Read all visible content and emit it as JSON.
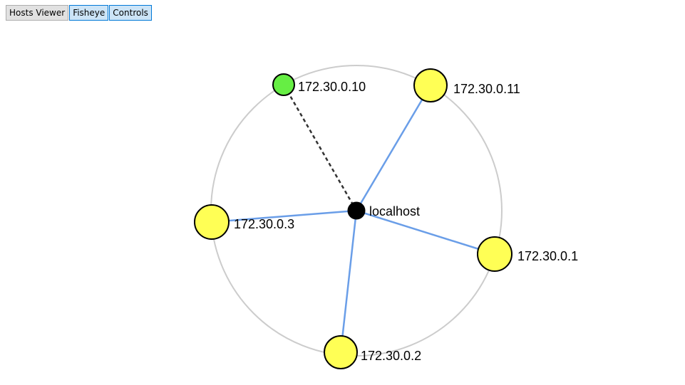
{
  "toolbar": {
    "buttons": [
      {
        "label": "Hosts Viewer",
        "active": false
      },
      {
        "label": "Fisheye",
        "active": true
      },
      {
        "label": "Controls",
        "active": true
      }
    ]
  },
  "graph": {
    "center": {
      "label": "localhost",
      "color": "#000000"
    },
    "orbit_color": "#cccccc",
    "link_color": "#6a9ee8",
    "dashed_link_color": "#333333",
    "nodes": [
      {
        "label": "172.30.0.10",
        "color": "#66ee44",
        "link": "dashed"
      },
      {
        "label": "172.30.0.11",
        "color": "#ffff55",
        "link": "solid"
      },
      {
        "label": "172.30.0.3",
        "color": "#ffff55",
        "link": "solid"
      },
      {
        "label": "172.30.0.1",
        "color": "#ffff55",
        "link": "solid"
      },
      {
        "label": "172.30.0.2",
        "color": "#ffff55",
        "link": "solid"
      }
    ]
  }
}
